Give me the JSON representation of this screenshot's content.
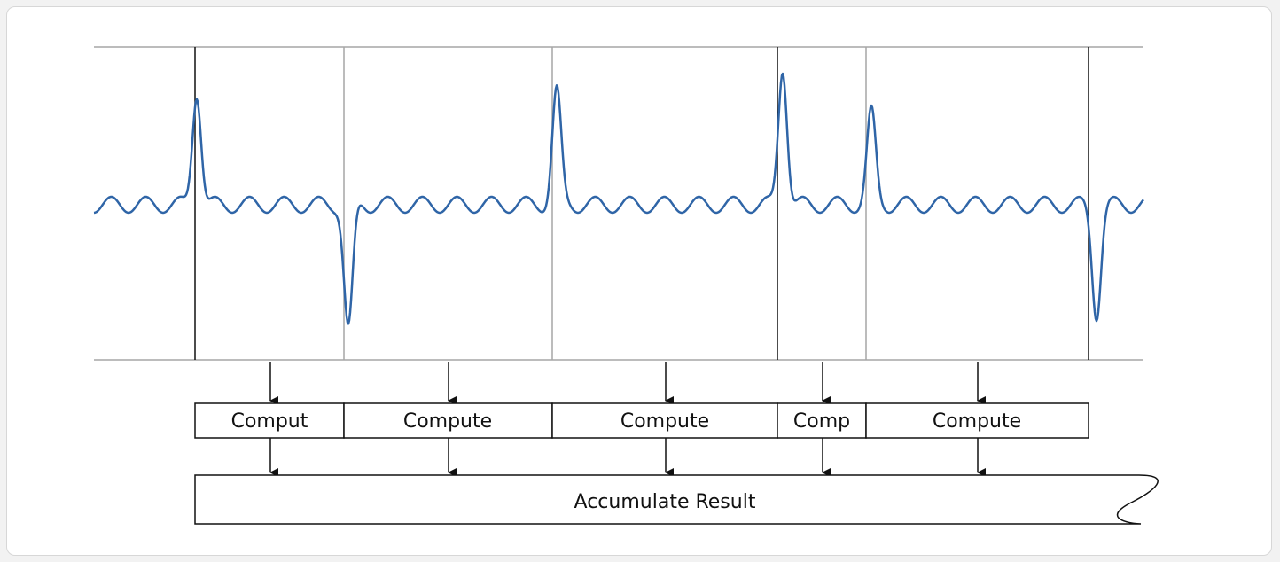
{
  "diagram": {
    "compute_labels": [
      "Comput",
      "Compute",
      "Compute",
      "Comp",
      "Compute"
    ],
    "accumulate_label": "Accumulate Result",
    "colors": {
      "signal": "#2f65a7",
      "boundary_major": "#111111",
      "boundary_minor": "#a6a6a6",
      "axis_rule": "#a6a6a6",
      "box_stroke": "#111111",
      "background": "#ffffff"
    }
  }
}
